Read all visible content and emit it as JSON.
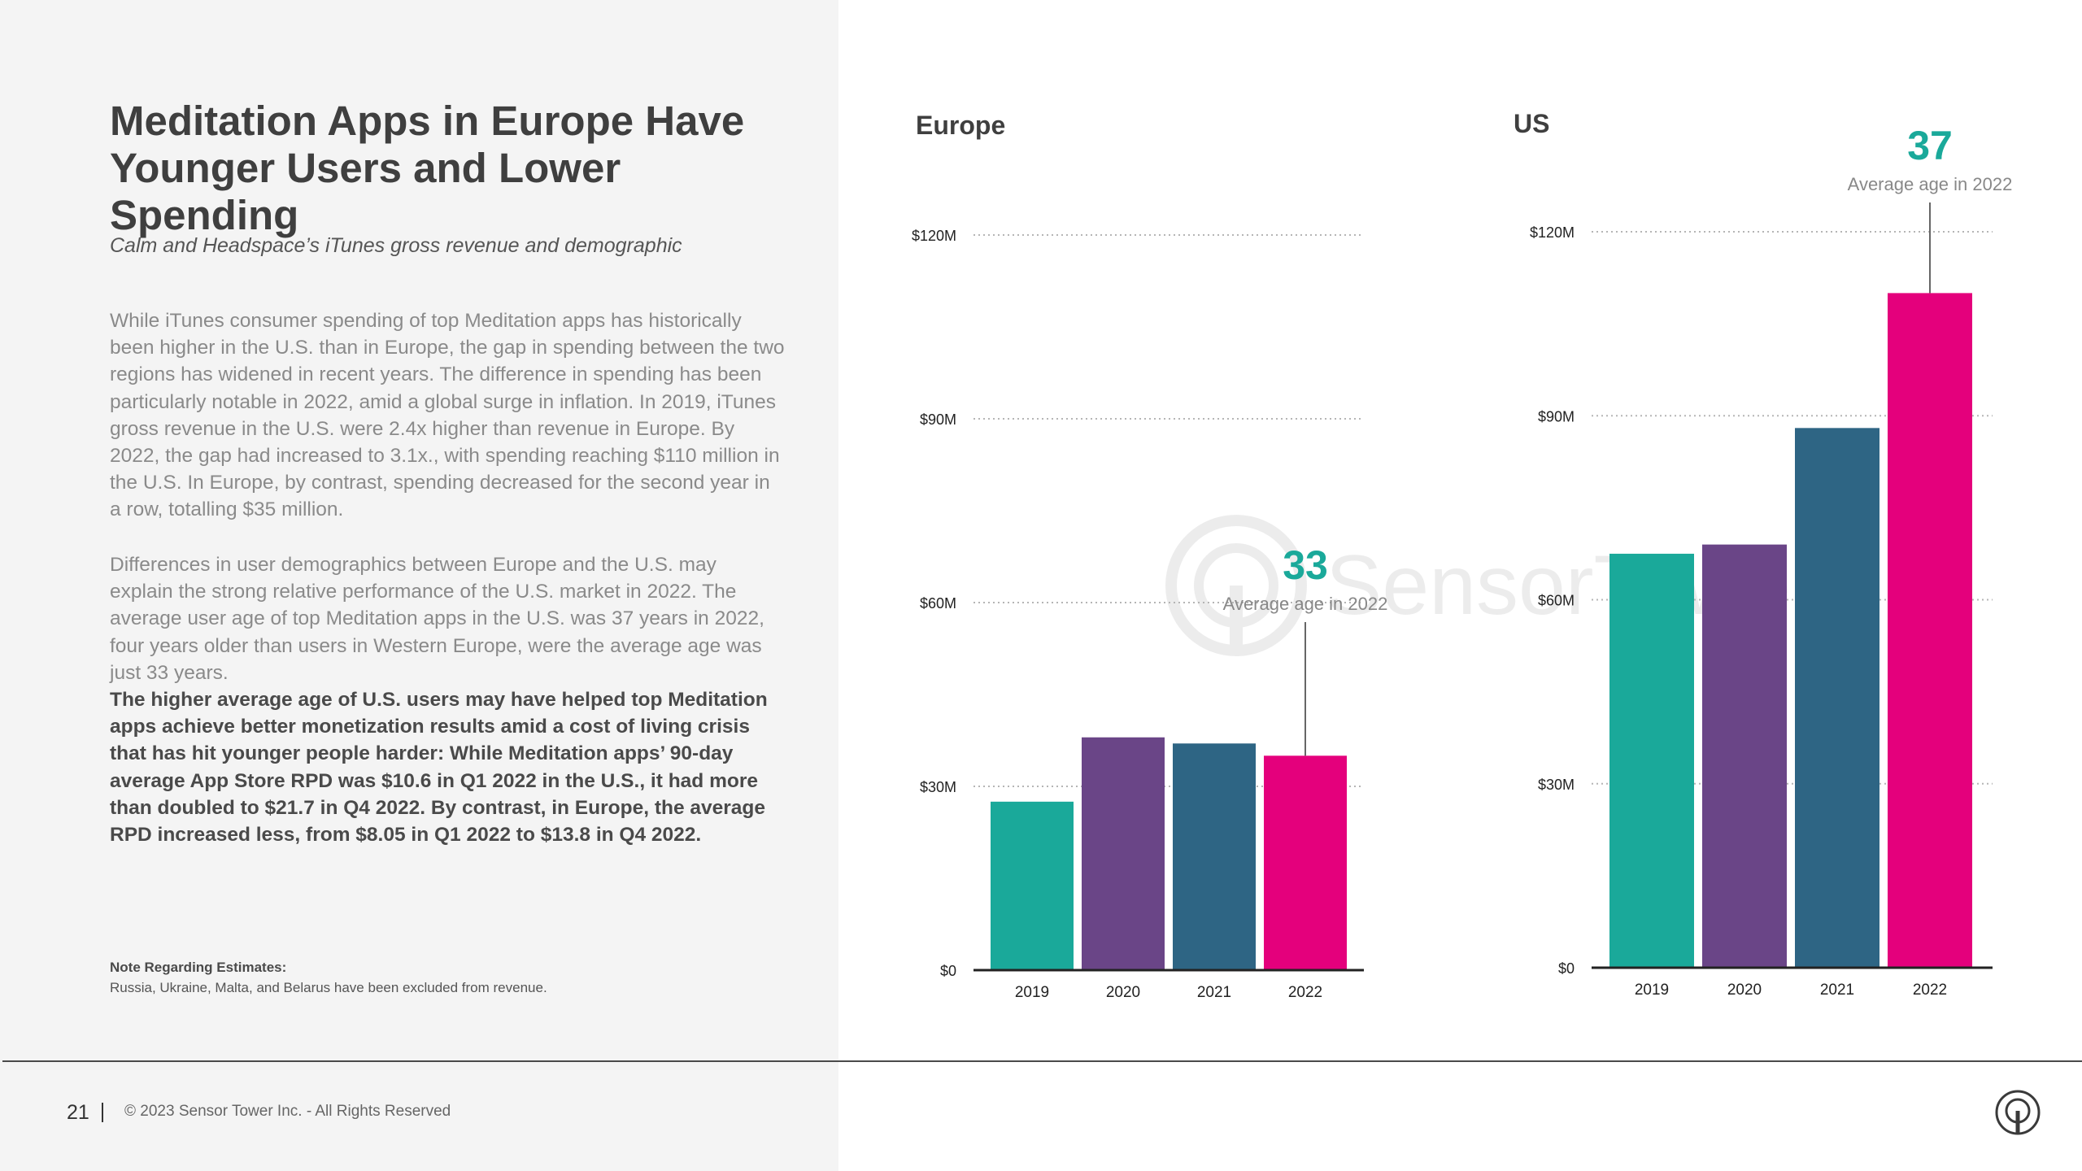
{
  "title": "Meditation Apps in Europe Have Younger Users and Lower Spending",
  "subtitle": "Calm and Headspace’s iTunes gross revenue and demographic",
  "paragraphs": {
    "p1": "While iTunes consumer spending of top Meditation apps has historically been higher in the U.S. than in Europe, the gap in spending between the two regions has widened in recent years. The difference in spending has been particularly notable in 2022, amid a global surge in inflation. In 2019, iTunes gross revenue in the U.S. were 2.4x higher than revenue in Europe. By 2022, the gap had increased to 3.1x., with spending reaching $110 million in the U.S. In Europe, by contrast, spending decreased for the second year in a row, totalling $35 million.",
    "p2": "Differences in user demographics between Europe and the U.S. may explain the strong relative performance of the U.S. market in 2022. The average user age of top Meditation apps in the U.S. was 37 years in 2022,  four years older than users in Western Europe, were the average age was just 33 years.",
    "p3": "The higher average age of U.S. users may have helped top Meditation apps achieve better monetization results amid a cost of living crisis that has hit younger people harder: While Meditation apps’ 90-day average App Store RPD was $10.6 in Q1 2022 in the U.S., it had more than doubled to $21.7 in Q4 2022. By contrast, in Europe, the average RPD increased less, from $8.05 in Q1 2022 to $13.8 in Q4 2022."
  },
  "note": {
    "title": "Note Regarding Estimates:",
    "text": "Russia, Ukraine, Malta, and Belarus have been excluded from revenue."
  },
  "footer": {
    "page_number": "21",
    "copyright": "© 2023 Sensor Tower Inc. - All Rights Reserved"
  },
  "watermark_text": "SensorTower",
  "colors": {
    "2019": "#1aa99a",
    "2020": "#6a4587",
    "2021": "#2e6584",
    "2022": "#e4007c",
    "accent": "#1aa99a",
    "text_dark": "#3f3f3f"
  },
  "chart_data": [
    {
      "type": "bar",
      "title": "Europe",
      "categories": [
        "2019",
        "2020",
        "2021",
        "2022"
      ],
      "values": [
        27.5,
        38,
        37,
        35
      ],
      "ylim": [
        0,
        120
      ],
      "ytick_values": [
        0,
        30,
        60,
        90,
        120
      ],
      "ytick_labels": [
        "$0",
        "$30M",
        "$60M",
        "$90M",
        "$120M"
      ],
      "grid": true,
      "annotation": {
        "value": "33",
        "label": "Average age in 2022",
        "category": "2022"
      }
    },
    {
      "type": "bar",
      "title": "US",
      "categories": [
        "2019",
        "2020",
        "2021",
        "2022"
      ],
      "values": [
        67.5,
        69,
        88,
        110
      ],
      "ylim": [
        0,
        120
      ],
      "ytick_values": [
        0,
        30,
        60,
        90,
        120
      ],
      "ytick_labels": [
        "$0",
        "$30M",
        "$60M",
        "$90M",
        "$120M"
      ],
      "grid": true,
      "annotation": {
        "value": "37",
        "label": "Average age in 2022",
        "category": "2022"
      }
    }
  ]
}
